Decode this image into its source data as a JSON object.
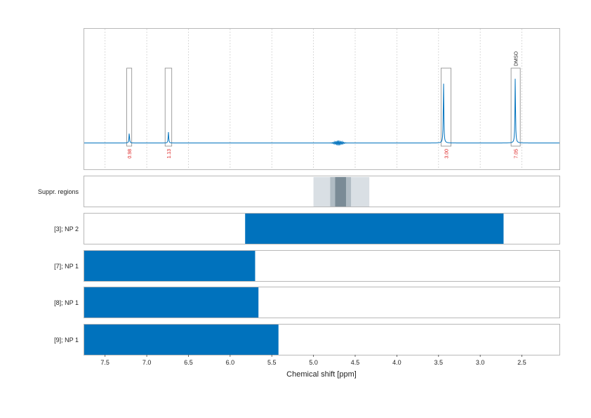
{
  "chart_data": {
    "type": "line",
    "xlabel": "Chemical shift [ppm]",
    "xlim": [
      7.75,
      2.05
    ],
    "x_ticks": [
      7.5,
      7.0,
      6.5,
      6.0,
      5.5,
      5.0,
      4.5,
      4.0,
      3.5,
      3.0,
      2.5
    ],
    "x_tick_labels": [
      "7.5",
      "7.0",
      "6.5",
      "6.0",
      "5.5",
      "5.0",
      "4.5",
      "4.0",
      "3.5",
      "3.0",
      "2.5"
    ],
    "grid": true,
    "colors": {
      "spectrum": "#0072bd",
      "integral_box": "#888888",
      "integral_label": "#dd2222",
      "bar": "#0072bd",
      "suppr_light": "#d9dfe4",
      "suppr_mid": "#b0bcc4",
      "suppr_dark": "#7a8b96"
    },
    "spectrum": {
      "peaks": [
        {
          "shift": 7.21,
          "height": 0.12
        },
        {
          "shift": 6.74,
          "height": 0.13
        },
        {
          "shift": 3.44,
          "height": 0.73
        },
        {
          "shift": 2.58,
          "height": 0.77
        }
      ],
      "noise_center": 4.7
    },
    "integrals": [
      {
        "x_from": 7.24,
        "x_to": 7.18,
        "value": "0.98",
        "label": ""
      },
      {
        "x_from": 6.78,
        "x_to": 6.7,
        "value": "1.13",
        "label": ""
      },
      {
        "x_from": 3.47,
        "x_to": 3.35,
        "value": "3.00",
        "label": ""
      },
      {
        "x_from": 2.63,
        "x_to": 2.52,
        "value": "7.05",
        "label": "DMSO"
      }
    ],
    "suppression_regions": {
      "label": "Suppr. regions",
      "bands": [
        {
          "from": 5.0,
          "to": 4.33,
          "shade": "light"
        },
        {
          "from": 4.8,
          "to": 4.55,
          "shade": "mid"
        },
        {
          "from": 4.74,
          "to": 4.61,
          "shade": "dark"
        }
      ]
    },
    "series": [
      {
        "name": "[3]; NP 2",
        "from": 5.82,
        "to": 2.72
      },
      {
        "name": "[7]; NP 1",
        "from": 7.75,
        "to": 5.7
      },
      {
        "name": "[8]; NP 1",
        "from": 7.75,
        "to": 5.66
      },
      {
        "name": "[9]; NP 1",
        "from": 7.75,
        "to": 5.42
      }
    ]
  }
}
